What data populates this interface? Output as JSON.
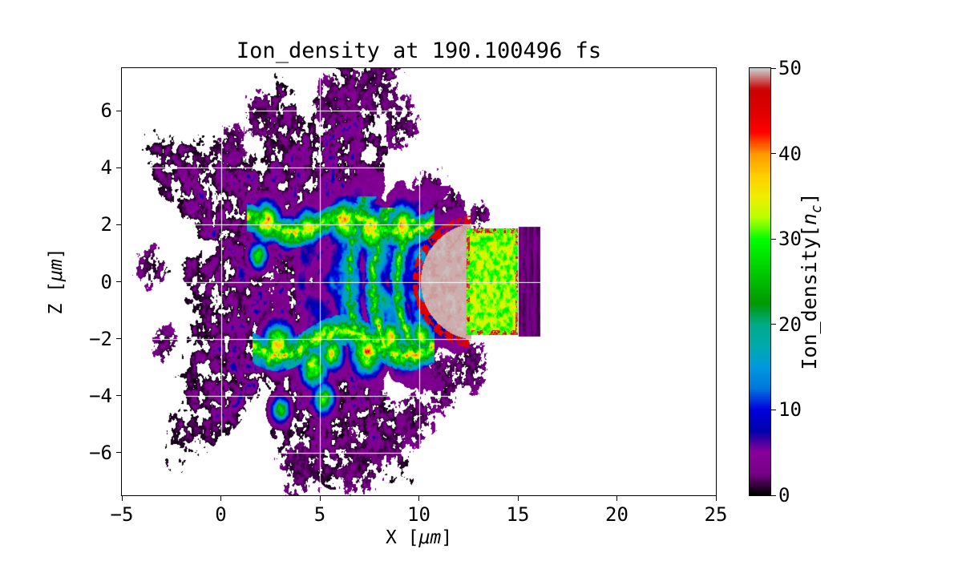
{
  "chart_data": {
    "type": "heatmap",
    "title": "Ion_density at 190.100496 fs",
    "xlabel": {
      "prefix": "X [",
      "math": "μm",
      "suffix": "]"
    },
    "ylabel": {
      "prefix": "Z [",
      "math": "μm",
      "suffix": "]"
    },
    "xlim": [
      -5,
      25
    ],
    "ylim": [
      -7.5,
      7.5
    ],
    "xticks": [
      -5,
      0,
      5,
      10,
      15,
      20,
      25
    ],
    "xtick_labels": [
      "−5",
      "0",
      "5",
      "10",
      "15",
      "20",
      "25"
    ],
    "yticks": [
      6,
      4,
      2,
      0,
      -2,
      -4,
      -6
    ],
    "ytick_labels": [
      "6",
      "4",
      "2",
      "0",
      "−2",
      "−4",
      "−6"
    ],
    "grid": true,
    "grid_color": "#ffffff",
    "background_color": "#ffffff",
    "colorbar": {
      "label": {
        "prefix": "Ion_density[",
        "var": "n",
        "sub": "c",
        "suffix": "]"
      },
      "min": 0,
      "max": 50,
      "ticks": [
        0,
        10,
        20,
        30,
        40,
        50
      ],
      "tick_labels": [
        "0",
        "10",
        "20",
        "30",
        "40",
        "50"
      ],
      "colormap": "nipy_spectral",
      "stops": [
        [
          0.0,
          [
            0,
            0,
            0
          ]
        ],
        [
          0.05,
          [
            119,
            0,
            136
          ]
        ],
        [
          0.1,
          [
            136,
            0,
            153
          ]
        ],
        [
          0.15,
          [
            0,
            0,
            170
          ]
        ],
        [
          0.2,
          [
            0,
            0,
            221
          ]
        ],
        [
          0.25,
          [
            0,
            119,
            221
          ]
        ],
        [
          0.3,
          [
            0,
            153,
            221
          ]
        ],
        [
          0.35,
          [
            0,
            170,
            170
          ]
        ],
        [
          0.4,
          [
            0,
            170,
            136
          ]
        ],
        [
          0.45,
          [
            0,
            153,
            0
          ]
        ],
        [
          0.5,
          [
            0,
            187,
            0
          ]
        ],
        [
          0.55,
          [
            0,
            221,
            0
          ]
        ],
        [
          0.6,
          [
            0,
            255,
            0
          ]
        ],
        [
          0.65,
          [
            187,
            255,
            0
          ]
        ],
        [
          0.7,
          [
            238,
            238,
            0
          ]
        ],
        [
          0.75,
          [
            255,
            204,
            0
          ]
        ],
        [
          0.8,
          [
            255,
            153,
            0
          ]
        ],
        [
          0.85,
          [
            255,
            0,
            0
          ]
        ],
        [
          0.9,
          [
            221,
            0,
            0
          ]
        ],
        [
          0.95,
          [
            204,
            0,
            0
          ]
        ],
        [
          1.0,
          [
            204,
            204,
            204
          ]
        ]
      ]
    },
    "field": {
      "description": "Laser-driven ion plasma cloud expanding left of a solid target slab; densities in units of n_c, 0-50",
      "cloud": {
        "cx": 4.3,
        "cz": 0.1,
        "rx": 7.0,
        "rz": 6.6,
        "lobes": [
          [
            5,
            0.2,
            1.3
          ],
          [
            9,
            0.13,
            4.1
          ],
          [
            14,
            0.08,
            2.2
          ]
        ],
        "noise_scale": 3.0,
        "hole": 0.3,
        "gain": 16
      },
      "core": {
        "cx": 8.2,
        "cz": 0.0,
        "sx": 2.9,
        "sz": 2.05,
        "base": 8,
        "amp": 18,
        "ripple_cx": 11.8,
        "ripple_freq": 3.3
      },
      "filaments": [
        {
          "z0": 2.0,
          "wiggle": 0.3,
          "freq": 1.15,
          "phase": 0.5,
          "x1": 1.3,
          "x2": 10.8,
          "width": 0.5,
          "vmin": 16,
          "vmax": 50
        },
        {
          "z0": -2.15,
          "wiggle": 0.45,
          "freq": 0.95,
          "phase": 2.0,
          "x1": 1.6,
          "x2": 10.8,
          "width": 0.55,
          "vmin": 16,
          "vmax": 50
        }
      ],
      "hotspots": [
        {
          "x": 2.3,
          "z": 2.1,
          "s": 0.45,
          "v": 50
        },
        {
          "x": 3.4,
          "z": 1.7,
          "s": 0.35,
          "v": 42
        },
        {
          "x": 1.9,
          "z": 0.9,
          "s": 0.3,
          "v": 38
        },
        {
          "x": 4.4,
          "z": 1.9,
          "s": 0.4,
          "v": 45
        },
        {
          "x": 6.3,
          "z": 2.1,
          "s": 0.5,
          "v": 47
        },
        {
          "x": 7.6,
          "z": 1.8,
          "s": 0.5,
          "v": 50
        },
        {
          "x": 9.2,
          "z": 1.9,
          "s": 0.5,
          "v": 50
        },
        {
          "x": 2.9,
          "z": -2.2,
          "s": 0.5,
          "v": 48
        },
        {
          "x": 4.7,
          "z": -3.0,
          "s": 0.45,
          "v": 45
        },
        {
          "x": 5.6,
          "z": -2.5,
          "s": 0.4,
          "v": 44
        },
        {
          "x": 7.4,
          "z": -2.5,
          "s": 0.5,
          "v": 50
        },
        {
          "x": 8.6,
          "z": -2.0,
          "s": 0.45,
          "v": 46
        },
        {
          "x": 10.1,
          "z": -1.9,
          "s": 0.4,
          "v": 44
        },
        {
          "x": 5.2,
          "z": -4.1,
          "s": 0.35,
          "v": 40
        },
        {
          "x": 3.0,
          "z": -4.5,
          "s": 0.3,
          "v": 36
        }
      ],
      "arcs": [
        {
          "cx": 12.3,
          "cz": 0,
          "r": 3.4,
          "w": 0.4,
          "vmin": 12,
          "vmax": 44,
          "zclip": 2.2
        },
        {
          "cx": 12.3,
          "cz": 0,
          "r": 4.6,
          "w": 0.45,
          "vmin": 12,
          "vmax": 46,
          "zclip": 2.6
        },
        {
          "cx": 12.3,
          "cz": 0,
          "r": 5.8,
          "w": 0.5,
          "vmin": 10,
          "vmax": 40,
          "zclip": 3.0
        }
      ],
      "cap": {
        "cx": 13.0,
        "cz": 0,
        "rx": 2.9,
        "rz": 2.05,
        "xmax": 12.65,
        "vmin": 49.2,
        "vmax": 50
      },
      "target": {
        "x1": 12.42,
        "x2": 15.03,
        "halfz": 1.86,
        "vmin": 25,
        "vmax": 39
      },
      "slab": {
        "x1": 15.03,
        "x2": 16.12,
        "halfz": 1.93,
        "base": 0.3,
        "amp": 3.0,
        "stripe": 1.1
      },
      "specks": [
        {
          "x": 7.8,
          "z": 6.9,
          "s": 1.2
        },
        {
          "x": 9.0,
          "z": 5.6,
          "s": 0.9
        },
        {
          "x": 5.5,
          "z": 6.3,
          "s": 0.8
        },
        {
          "x": 2.0,
          "z": 5.8,
          "s": 0.8
        },
        {
          "x": 0.5,
          "z": 4.8,
          "s": 0.7
        },
        {
          "x": 10.6,
          "z": 3.1,
          "s": 0.8
        },
        {
          "x": 11.8,
          "z": 2.4,
          "s": 0.7
        },
        {
          "x": 13.0,
          "z": 2.3,
          "s": 0.5
        },
        {
          "x": 12.5,
          "z": -3.0,
          "s": 0.9
        },
        {
          "x": 11.2,
          "z": -3.6,
          "s": 0.9
        },
        {
          "x": 9.8,
          "z": -4.8,
          "s": 0.9
        },
        {
          "x": 8.5,
          "z": -5.5,
          "s": 0.8
        },
        {
          "x": 7.0,
          "z": -6.3,
          "s": 1.1
        },
        {
          "x": 4.0,
          "z": -6.6,
          "s": 1.0
        },
        {
          "x": -3.5,
          "z": 0.5,
          "s": 0.7
        },
        {
          "x": -2.8,
          "z": -2.2,
          "s": 0.6
        }
      ]
    }
  }
}
